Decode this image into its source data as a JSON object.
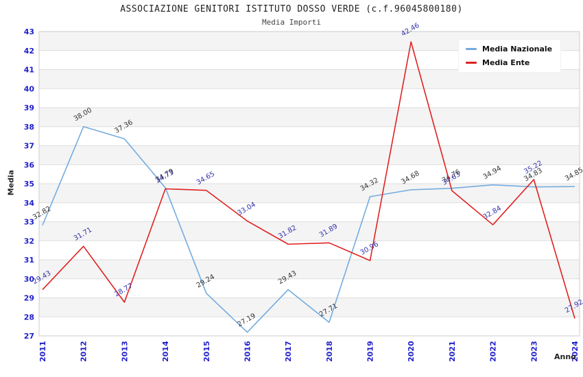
{
  "header": {
    "title": "ASSOCIAZIONE GENITORI ISTITUTO DOSSO VERDE (c.f.96045800180)",
    "subtitle": "Media Importi"
  },
  "axes": {
    "y_title": "Media",
    "x_title": "Anno"
  },
  "legend": {
    "items": [
      {
        "label": "Media Nazionale",
        "color": "#73ABDF"
      },
      {
        "label": "Media Ente",
        "color": "#E02020"
      }
    ]
  },
  "colors": {
    "axis_tick": "#2020CC",
    "grid": "#DDDDDD",
    "band": "#F4F4F4",
    "plot_border": "#CCCCCC",
    "title_text": "#222222"
  },
  "chart_data": {
    "type": "line",
    "title": "ASSOCIAZIONE GENITORI ISTITUTO DOSSO VERDE (c.f.96045800180)",
    "subtitle": "Media Importi",
    "xlabel": "Anno",
    "ylabel": "Media",
    "ylim": [
      27,
      43
    ],
    "ytick_step": 1,
    "grid": "horizontal-bands",
    "legend_position": "top-right",
    "x": [
      "2011",
      "2012",
      "2013",
      "2014",
      "2015",
      "2016",
      "2017",
      "2018",
      "2019",
      "2020",
      "2021",
      "2022",
      "2023",
      "2024"
    ],
    "series": [
      {
        "name": "Media Nazionale",
        "color": "#73ABDF",
        "label_color": "#333333",
        "values": [
          32.82,
          38.0,
          37.36,
          34.79,
          29.24,
          27.19,
          29.43,
          27.71,
          34.32,
          34.68,
          34.76,
          34.94,
          34.83,
          34.85
        ]
      },
      {
        "name": "Media Ente",
        "color": "#E02020",
        "label_color": "#3333AA",
        "values": [
          29.43,
          31.71,
          28.77,
          34.73,
          34.65,
          33.04,
          31.82,
          31.89,
          30.96,
          42.46,
          34.63,
          32.84,
          35.22,
          27.92
        ]
      }
    ]
  }
}
